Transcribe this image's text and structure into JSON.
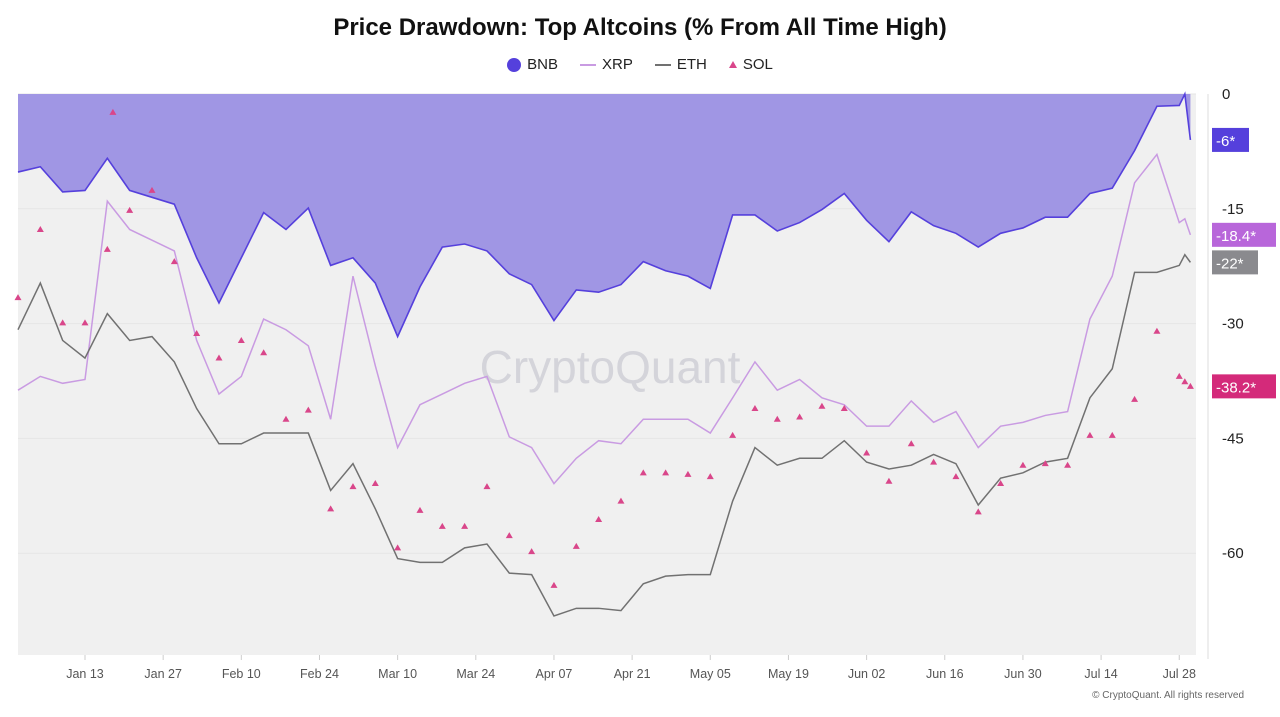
{
  "chart_data": {
    "type": "line",
    "title": "Price Drawdown: Top Altcoins (% From All Time High)",
    "xlabel": "",
    "ylabel": "",
    "ylim": [
      -73.3,
      0
    ],
    "y_ticks": [
      "0",
      "-15",
      "-30",
      "-45",
      "-60"
    ],
    "y_tick_values": [
      0,
      -15,
      -30,
      -45,
      -60
    ],
    "x_ticks": [
      "Jan 13",
      "Jan 27",
      "Feb 10",
      "Feb 24",
      "Mar 10",
      "Mar 24",
      "Apr 07",
      "Apr 21",
      "May 05",
      "May 19",
      "Jun 02",
      "Jun 16",
      "Jun 30",
      "Jul 14",
      "Jul 28"
    ],
    "x_range": [
      "Jan 01",
      "Jul 31"
    ],
    "grid": true,
    "legend_position": "top-center",
    "series": [
      {
        "name": "BNB",
        "style": "area",
        "color": "#5540dc",
        "fill": "#a096e4",
        "last_label": "-6*",
        "points": [
          [
            "Jan 01",
            -10.2
          ],
          [
            "Jan 05",
            -9.5
          ],
          [
            "Jan 09",
            -12.8
          ],
          [
            "Jan 13",
            -12.6
          ],
          [
            "Jan 17",
            -8.4
          ],
          [
            "Jan 21",
            -12.6
          ],
          [
            "Jan 25",
            -13.5
          ],
          [
            "Jan 29",
            -14.4
          ],
          [
            "Feb 02",
            -21.4
          ],
          [
            "Feb 06",
            -27.3
          ],
          [
            "Feb 10",
            -21.4
          ],
          [
            "Feb 14",
            -15.5
          ],
          [
            "Feb 18",
            -17.7
          ],
          [
            "Feb 22",
            -14.9
          ],
          [
            "Feb 26",
            -22.4
          ],
          [
            "Mar 02",
            -21.4
          ],
          [
            "Mar 06",
            -24.7
          ],
          [
            "Mar 10",
            -31.7
          ],
          [
            "Mar 14",
            -25.2
          ],
          [
            "Mar 18",
            -20.0
          ],
          [
            "Mar 22",
            -19.6
          ],
          [
            "Mar 26",
            -20.5
          ],
          [
            "Mar 30",
            -23.5
          ],
          [
            "Apr 03",
            -24.9
          ],
          [
            "Apr 07",
            -29.6
          ],
          [
            "Apr 11",
            -25.6
          ],
          [
            "Apr 15",
            -25.9
          ],
          [
            "Apr 19",
            -24.9
          ],
          [
            "Apr 23",
            -21.9
          ],
          [
            "Apr 27",
            -23.1
          ],
          [
            "May 01",
            -23.8
          ],
          [
            "May 05",
            -25.4
          ],
          [
            "May 09",
            -15.8
          ],
          [
            "May 13",
            -15.8
          ],
          [
            "May 17",
            -17.9
          ],
          [
            "May 21",
            -16.8
          ],
          [
            "May 25",
            -15.1
          ],
          [
            "May 29",
            -13.0
          ],
          [
            "Jun 02",
            -16.5
          ],
          [
            "Jun 06",
            -19.3
          ],
          [
            "Jun 10",
            -15.4
          ],
          [
            "Jun 14",
            -17.2
          ],
          [
            "Jun 18",
            -18.2
          ],
          [
            "Jun 22",
            -20.0
          ],
          [
            "Jun 26",
            -18.2
          ],
          [
            "Jun 30",
            -17.5
          ],
          [
            "Jul 04",
            -16.1
          ],
          [
            "Jul 08",
            -16.1
          ],
          [
            "Jul 12",
            -13.0
          ],
          [
            "Jul 16",
            -12.3
          ],
          [
            "Jul 20",
            -7.4
          ],
          [
            "Jul 24",
            -1.6
          ],
          [
            "Jul 28",
            -1.5
          ],
          [
            "Jul 29",
            0
          ],
          [
            "Jul 30",
            -6
          ]
        ]
      },
      {
        "name": "XRP",
        "style": "line",
        "color": "#c99be2",
        "label_color": "#b866da",
        "last_label": "-18.4*",
        "points": [
          [
            "Jan 01",
            -38.7
          ],
          [
            "Jan 05",
            -36.9
          ],
          [
            "Jan 09",
            -37.8
          ],
          [
            "Jan 13",
            -37.3
          ],
          [
            "Jan 17",
            -14.0
          ],
          [
            "Jan 21",
            -17.7
          ],
          [
            "Jan 25",
            -19.1
          ],
          [
            "Jan 29",
            -20.5
          ],
          [
            "Feb 02",
            -32.2
          ],
          [
            "Feb 06",
            -39.2
          ],
          [
            "Feb 10",
            -36.9
          ],
          [
            "Feb 14",
            -29.4
          ],
          [
            "Feb 18",
            -30.8
          ],
          [
            "Feb 22",
            -32.9
          ],
          [
            "Feb 26",
            -42.5
          ],
          [
            "Mar 02",
            -23.8
          ],
          [
            "Mar 06",
            -35.5
          ],
          [
            "Mar 10",
            -46.2
          ],
          [
            "Mar 14",
            -40.6
          ],
          [
            "Mar 18",
            -39.2
          ],
          [
            "Mar 22",
            -37.8
          ],
          [
            "Mar 26",
            -36.9
          ],
          [
            "Mar 30",
            -44.8
          ],
          [
            "Apr 03",
            -46.2
          ],
          [
            "Apr 07",
            -50.9
          ],
          [
            "Apr 11",
            -47.6
          ],
          [
            "Apr 15",
            -45.3
          ],
          [
            "Apr 19",
            -45.7
          ],
          [
            "Apr 23",
            -42.5
          ],
          [
            "Apr 27",
            -42.5
          ],
          [
            "May 01",
            -42.5
          ],
          [
            "May 05",
            -44.3
          ],
          [
            "May 09",
            -39.7
          ],
          [
            "May 13",
            -35.0
          ],
          [
            "May 17",
            -38.7
          ],
          [
            "May 21",
            -37.3
          ],
          [
            "May 25",
            -39.7
          ],
          [
            "May 29",
            -40.6
          ],
          [
            "Jun 02",
            -43.4
          ],
          [
            "Jun 06",
            -43.4
          ],
          [
            "Jun 10",
            -40.1
          ],
          [
            "Jun 14",
            -42.9
          ],
          [
            "Jun 18",
            -41.5
          ],
          [
            "Jun 22",
            -46.2
          ],
          [
            "Jun 26",
            -43.4
          ],
          [
            "Jun 30",
            -42.9
          ],
          [
            "Jul 04",
            -42.0
          ],
          [
            "Jul 08",
            -41.5
          ],
          [
            "Jul 12",
            -29.4
          ],
          [
            "Jul 16",
            -23.8
          ],
          [
            "Jul 20",
            -11.6
          ],
          [
            "Jul 24",
            -7.9
          ],
          [
            "Jul 28",
            -16.8
          ],
          [
            "Jul 29",
            -16.3
          ],
          [
            "Jul 30",
            -18.4
          ]
        ]
      },
      {
        "name": "ETH",
        "style": "line",
        "color": "#717171",
        "label_color": "#8a8a8e",
        "last_label": "-22*",
        "points": [
          [
            "Jan 01",
            -30.8
          ],
          [
            "Jan 05",
            -24.7
          ],
          [
            "Jan 09",
            -32.2
          ],
          [
            "Jan 13",
            -34.5
          ],
          [
            "Jan 17",
            -28.7
          ],
          [
            "Jan 21",
            -32.2
          ],
          [
            "Jan 25",
            -31.7
          ],
          [
            "Jan 29",
            -35.0
          ],
          [
            "Feb 02",
            -41.1
          ],
          [
            "Feb 06",
            -45.7
          ],
          [
            "Feb 10",
            -45.7
          ],
          [
            "Feb 14",
            -44.3
          ],
          [
            "Feb 18",
            -44.3
          ],
          [
            "Feb 22",
            -44.3
          ],
          [
            "Feb 26",
            -51.8
          ],
          [
            "Mar 02",
            -48.3
          ],
          [
            "Mar 06",
            -54.2
          ],
          [
            "Mar 10",
            -60.7
          ],
          [
            "Mar 14",
            -61.2
          ],
          [
            "Mar 18",
            -61.2
          ],
          [
            "Mar 22",
            -59.3
          ],
          [
            "Mar 26",
            -58.8
          ],
          [
            "Mar 30",
            -62.6
          ],
          [
            "Apr 03",
            -62.8
          ],
          [
            "Apr 07",
            -68.2
          ],
          [
            "Apr 11",
            -67.2
          ],
          [
            "Apr 15",
            -67.2
          ],
          [
            "Apr 19",
            -67.5
          ],
          [
            "Apr 23",
            -64.0
          ],
          [
            "Apr 27",
            -63.0
          ],
          [
            "May 01",
            -62.8
          ],
          [
            "May 05",
            -62.8
          ],
          [
            "May 09",
            -53.2
          ],
          [
            "May 13",
            -46.2
          ],
          [
            "May 17",
            -48.5
          ],
          [
            "May 21",
            -47.6
          ],
          [
            "May 25",
            -47.6
          ],
          [
            "May 29",
            -45.3
          ],
          [
            "Jun 02",
            -48.1
          ],
          [
            "Jun 06",
            -49.0
          ],
          [
            "Jun 10",
            -48.5
          ],
          [
            "Jun 14",
            -47.1
          ],
          [
            "Jun 18",
            -48.3
          ],
          [
            "Jun 22",
            -53.7
          ],
          [
            "Jun 26",
            -50.2
          ],
          [
            "Jun 30",
            -49.5
          ],
          [
            "Jul 04",
            -48.1
          ],
          [
            "Jul 08",
            -47.6
          ],
          [
            "Jul 12",
            -39.7
          ],
          [
            "Jul 16",
            -35.9
          ],
          [
            "Jul 20",
            -23.3
          ],
          [
            "Jul 24",
            -23.3
          ],
          [
            "Jul 28",
            -22.4
          ],
          [
            "Jul 29",
            -21.0
          ],
          [
            "Jul 30",
            -22.0
          ]
        ]
      },
      {
        "name": "SOL",
        "style": "scatter-triangle",
        "color": "#d9468a",
        "label_color": "#d42a7a",
        "last_label": "-38.2*",
        "points": [
          [
            "Jan 01",
            -26.6
          ],
          [
            "Jan 05",
            -17.7
          ],
          [
            "Jan 09",
            -29.9
          ],
          [
            "Jan 13",
            -29.9
          ],
          [
            "Jan 17",
            -20.3
          ],
          [
            "Jan 18",
            -2.4
          ],
          [
            "Jan 21",
            -15.2
          ],
          [
            "Jan 25",
            -12.6
          ],
          [
            "Jan 29",
            -21.9
          ],
          [
            "Feb 02",
            -31.3
          ],
          [
            "Feb 06",
            -34.5
          ],
          [
            "Feb 10",
            -32.2
          ],
          [
            "Feb 14",
            -33.8
          ],
          [
            "Feb 18",
            -42.5
          ],
          [
            "Feb 22",
            -41.3
          ],
          [
            "Feb 26",
            -54.2
          ],
          [
            "Mar 02",
            -51.3
          ],
          [
            "Mar 06",
            -50.9
          ],
          [
            "Mar 10",
            -59.3
          ],
          [
            "Mar 14",
            -54.4
          ],
          [
            "Mar 18",
            -56.5
          ],
          [
            "Mar 22",
            -56.5
          ],
          [
            "Mar 26",
            -51.3
          ],
          [
            "Mar 30",
            -57.7
          ],
          [
            "Apr 03",
            -59.8
          ],
          [
            "Apr 07",
            -64.2
          ],
          [
            "Apr 11",
            -59.1
          ],
          [
            "Apr 15",
            -55.6
          ],
          [
            "Apr 19",
            -53.2
          ],
          [
            "Apr 23",
            -49.5
          ],
          [
            "Apr 27",
            -49.5
          ],
          [
            "May 01",
            -49.7
          ],
          [
            "May 05",
            -50.0
          ],
          [
            "May 09",
            -44.6
          ],
          [
            "May 13",
            -41.1
          ],
          [
            "May 17",
            -42.5
          ],
          [
            "May 21",
            -42.2
          ],
          [
            "May 25",
            -40.8
          ],
          [
            "May 29",
            -41.1
          ],
          [
            "Jun 02",
            -46.9
          ],
          [
            "Jun 06",
            -50.6
          ],
          [
            "Jun 10",
            -45.7
          ],
          [
            "Jun 14",
            -48.1
          ],
          [
            "Jun 18",
            -50.0
          ],
          [
            "Jun 22",
            -54.6
          ],
          [
            "Jun 26",
            -50.9
          ],
          [
            "Jun 30",
            -48.5
          ],
          [
            "Jul 04",
            -48.3
          ],
          [
            "Jul 08",
            -48.5
          ],
          [
            "Jul 12",
            -44.6
          ],
          [
            "Jul 16",
            -44.6
          ],
          [
            "Jul 20",
            -39.9
          ],
          [
            "Jul 24",
            -31.0
          ],
          [
            "Jul 28",
            -36.9
          ],
          [
            "Jul 29",
            -37.6
          ],
          [
            "Jul 30",
            -38.2
          ]
        ]
      }
    ],
    "watermark": "CryptoQuant"
  },
  "footer": {
    "copyright": "© CryptoQuant. All rights reserved"
  }
}
